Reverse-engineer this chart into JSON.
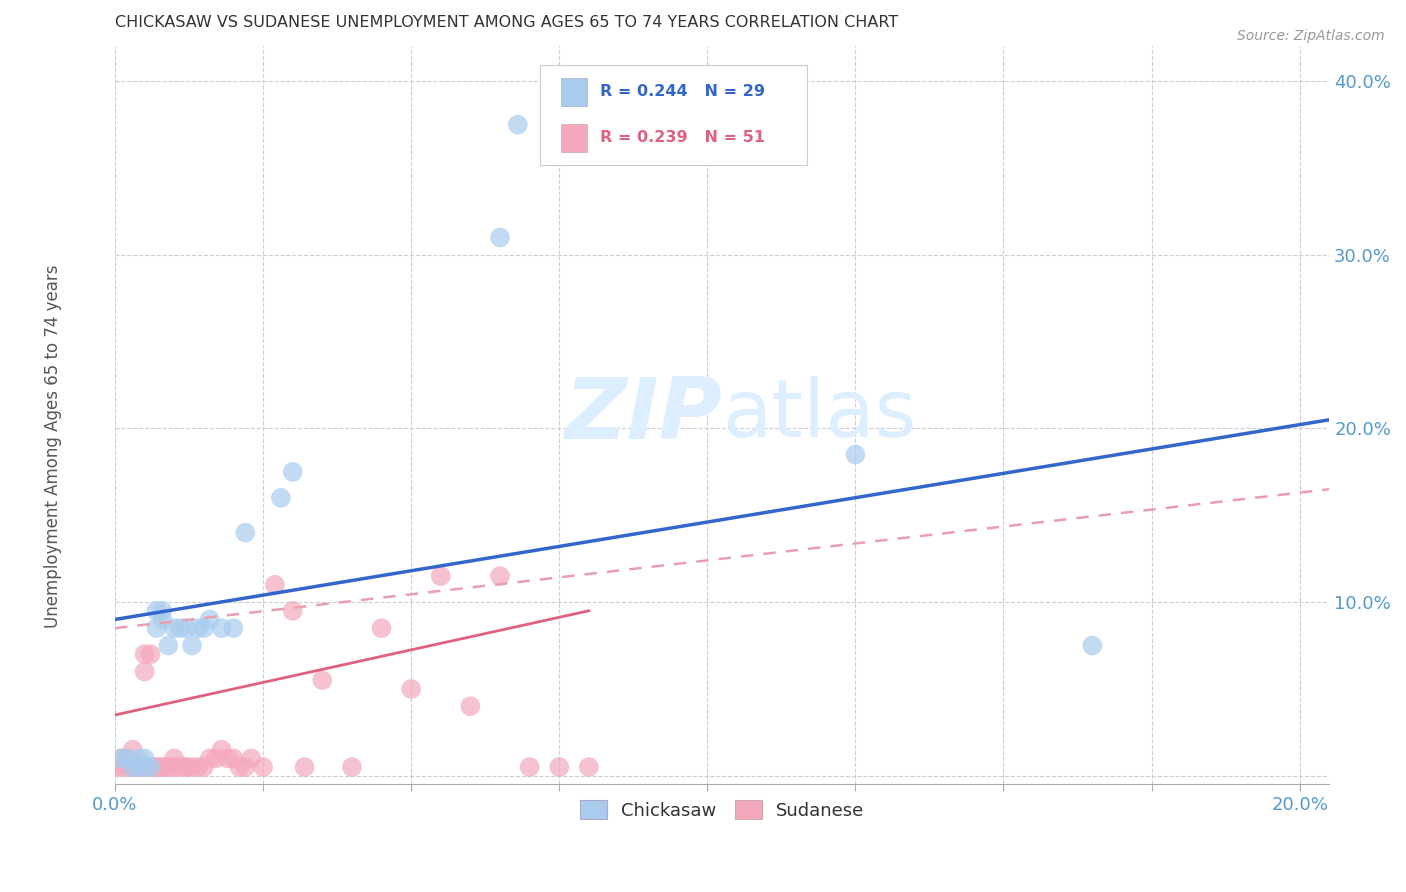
{
  "title": "CHICKASAW VS SUDANESE UNEMPLOYMENT AMONG AGES 65 TO 74 YEARS CORRELATION CHART",
  "source": "Source: ZipAtlas.com",
  "ylabel": "Unemployment Among Ages 65 to 74 years",
  "xlim": [
    0.0,
    0.205
  ],
  "ylim": [
    -0.005,
    0.42
  ],
  "xticks": [
    0.0,
    0.025,
    0.05,
    0.075,
    0.1,
    0.125,
    0.15,
    0.175,
    0.2
  ],
  "yticks": [
    0.0,
    0.1,
    0.2,
    0.3,
    0.4
  ],
  "ytick_labels": [
    "",
    "10.0%",
    "20.0%",
    "30.0%",
    "40.0%"
  ],
  "xtick_left_label": "0.0%",
  "xtick_right_label": "20.0%",
  "chickasaw_R": "0.244",
  "chickasaw_N": "29",
  "sudanese_R": "0.239",
  "sudanese_N": "51",
  "chickasaw_color": "#A8CCEE",
  "sudanese_color": "#F4A8BB",
  "trendline_chickasaw_color": "#3366CC",
  "trendline_sudanese_solid_color": "#E06080",
  "trendline_sudanese_dash_color": "#E8A0B0",
  "watermark_zip": "ZIP",
  "watermark_atlas": "atlas",
  "watermark_color": "#DDEEFF",
  "background_color": "#FFFFFF",
  "grid_color": "#CCCCDD",
  "title_color": "#333333",
  "axis_label_color": "#555555",
  "tick_label_color": "#5599CC",
  "chickasaw_x": [
    0.001,
    0.002,
    0.003,
    0.004,
    0.004,
    0.005,
    0.005,
    0.006,
    0.007,
    0.007,
    0.008,
    0.008,
    0.009,
    0.01,
    0.011,
    0.012,
    0.013,
    0.014,
    0.015,
    0.016,
    0.018,
    0.02,
    0.022,
    0.028,
    0.03,
    0.065,
    0.068,
    0.125,
    0.165
  ],
  "chickasaw_y": [
    0.01,
    0.01,
    0.005,
    0.005,
    0.01,
    0.005,
    0.01,
    0.005,
    0.085,
    0.095,
    0.09,
    0.095,
    0.075,
    0.085,
    0.085,
    0.085,
    0.075,
    0.085,
    0.085,
    0.09,
    0.085,
    0.085,
    0.14,
    0.16,
    0.175,
    0.31,
    0.375,
    0.185,
    0.075
  ],
  "sudanese_x": [
    0.0,
    0.001,
    0.001,
    0.002,
    0.002,
    0.003,
    0.003,
    0.003,
    0.004,
    0.004,
    0.005,
    0.005,
    0.005,
    0.006,
    0.006,
    0.007,
    0.007,
    0.008,
    0.008,
    0.009,
    0.009,
    0.01,
    0.01,
    0.011,
    0.012,
    0.012,
    0.013,
    0.014,
    0.015,
    0.016,
    0.017,
    0.018,
    0.019,
    0.02,
    0.021,
    0.022,
    0.023,
    0.025,
    0.027,
    0.03,
    0.032,
    0.035,
    0.04,
    0.045,
    0.05,
    0.055,
    0.06,
    0.065,
    0.07,
    0.075,
    0.08
  ],
  "sudanese_y": [
    0.005,
    0.005,
    0.01,
    0.005,
    0.01,
    0.005,
    0.005,
    0.015,
    0.005,
    0.005,
    0.06,
    0.07,
    0.005,
    0.07,
    0.005,
    0.005,
    0.005,
    0.005,
    0.005,
    0.005,
    0.005,
    0.005,
    0.01,
    0.005,
    0.005,
    0.005,
    0.005,
    0.005,
    0.005,
    0.01,
    0.01,
    0.015,
    0.01,
    0.01,
    0.005,
    0.005,
    0.01,
    0.005,
    0.11,
    0.095,
    0.005,
    0.055,
    0.005,
    0.085,
    0.05,
    0.115,
    0.04,
    0.115,
    0.005,
    0.005,
    0.005
  ],
  "trendline_chickasaw_x0": 0.0,
  "trendline_chickasaw_y0": 0.09,
  "trendline_chickasaw_x1": 0.205,
  "trendline_chickasaw_y1": 0.205,
  "trendline_sudanese_solid_x0": 0.0,
  "trendline_sudanese_solid_y0": 0.035,
  "trendline_sudanese_solid_x1": 0.08,
  "trendline_sudanese_solid_y1": 0.095,
  "trendline_sudanese_dash_x0": 0.0,
  "trendline_sudanese_dash_y0": 0.085,
  "trendline_sudanese_dash_x1": 0.205,
  "trendline_sudanese_dash_y1": 0.165
}
